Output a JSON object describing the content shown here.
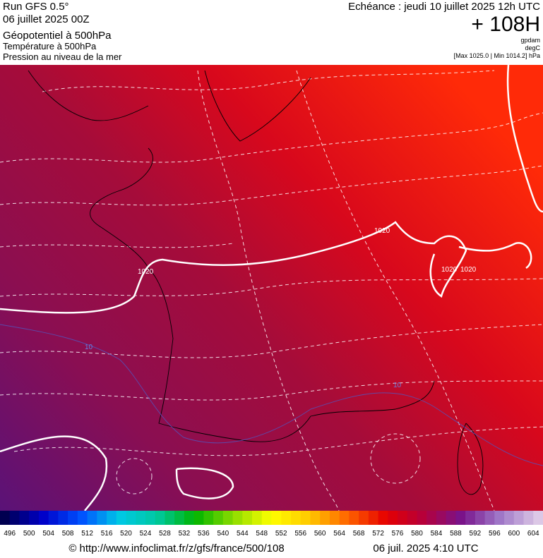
{
  "header": {
    "run": "Run GFS 0.5°",
    "date": "06 juillet 2025 00Z",
    "fields": [
      "Géopotentiel à 500hPa",
      "Température à 500hPa",
      "Pression au niveau de la mer"
    ],
    "echeance": "Echéance : jeudi 10 juillet 2025 12h UTC",
    "lead": "+ 108H",
    "units": [
      "gpdam",
      "degC"
    ],
    "range": "[Max 1025.0 | Min 1014.2] hPa"
  },
  "map": {
    "contour_labels": [
      "1020",
      "1020",
      "1020",
      "1020",
      "10",
      "10"
    ]
  },
  "colorbar": {
    "labels": [
      496,
      500,
      504,
      508,
      512,
      516,
      520,
      524,
      528,
      532,
      536,
      540,
      544,
      548,
      552,
      556,
      560,
      564,
      568,
      572,
      576,
      580,
      584,
      588,
      592,
      596,
      600,
      604
    ],
    "color_stops": [
      "#000050",
      "#0000c8",
      "#0050ff",
      "#00c8e6",
      "#00c8a0",
      "#00b400",
      "#8cdc00",
      "#ffff00",
      "#ffc800",
      "#ff6400",
      "#e60000",
      "#b4003c",
      "#78148c",
      "#a078c8",
      "#dcc8e6"
    ]
  },
  "footer": {
    "url": "© http://www.infoclimat.fr/z/gfs/france/500/108",
    "timestamp": "06 juil. 2025  4:10 UTC"
  }
}
